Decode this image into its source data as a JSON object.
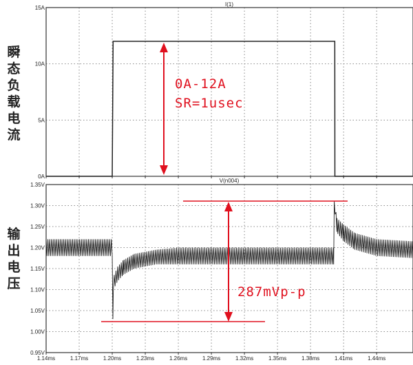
{
  "chart_data": [
    {
      "type": "line",
      "title": "I(1)",
      "ylabel": "瞬态负载电流",
      "xunit": "ms",
      "xlim": [
        1.14,
        1.473
      ],
      "ylim": [
        0,
        15
      ],
      "yticks": [
        "0A",
        "5A",
        "10A",
        "15A"
      ],
      "ytick_values": [
        0,
        5,
        10,
        15
      ],
      "xtick_values": [
        1.14,
        1.17,
        1.2,
        1.23,
        1.26,
        1.29,
        1.32,
        1.35,
        1.38,
        1.41,
        1.44
      ],
      "grid": true,
      "series": [
        {
          "name": "I(1)",
          "x": [
            1.14,
            1.2,
            1.2008,
            1.402,
            1.4021,
            1.473
          ],
          "y": [
            0,
            0,
            12,
            12,
            0,
            0
          ]
        }
      ],
      "color": "#222222"
    },
    {
      "type": "line",
      "title": "V(n004)",
      "ylabel": "输出电压",
      "xunit": "ms",
      "xlim": [
        1.14,
        1.473
      ],
      "ylim": [
        0.95,
        1.35
      ],
      "yticks": [
        "0.95V",
        "1.00V",
        "1.05V",
        "1.10V",
        "1.15V",
        "1.20V",
        "1.25V",
        "1.30V",
        "1.35V"
      ],
      "ytick_values": [
        0.95,
        1.0,
        1.05,
        1.1,
        1.15,
        1.2,
        1.25,
        1.3,
        1.35
      ],
      "xticks": [
        "1.14ms",
        "1.17ms",
        "1.20ms",
        "1.23ms",
        "1.26ms",
        "1.29ms",
        "1.32ms",
        "1.35ms",
        "1.38ms",
        "1.41ms",
        "1.44ms"
      ],
      "xtick_values": [
        1.14,
        1.17,
        1.2,
        1.23,
        1.26,
        1.29,
        1.32,
        1.35,
        1.38,
        1.41,
        1.44
      ],
      "grid": true,
      "ripple_envelope": {
        "x": [
          1.14,
          1.2,
          1.2006,
          1.201,
          1.205,
          1.21,
          1.22,
          1.24,
          1.26,
          1.401,
          1.4015,
          1.404,
          1.41,
          1.42,
          1.44,
          1.473
        ],
        "upper": [
          1.22,
          1.22,
          1.03,
          1.13,
          1.155,
          1.17,
          1.185,
          1.195,
          1.2,
          1.2,
          1.31,
          1.27,
          1.255,
          1.235,
          1.22,
          1.215
        ],
        "lower": [
          1.18,
          1.18,
          1.02,
          1.1,
          1.12,
          1.135,
          1.15,
          1.16,
          1.16,
          1.16,
          1.3,
          1.235,
          1.215,
          1.195,
          1.18,
          1.175
        ]
      },
      "color": "#222222"
    }
  ],
  "annotations": {
    "current_range": "0A-12A",
    "slew_rate": "SR=1usec",
    "ripple_pp": "287mVp-p",
    "color": "#e0101e"
  },
  "labels": {
    "top_ylabel": "瞬态负载电流",
    "bottom_ylabel": "输出电压"
  }
}
